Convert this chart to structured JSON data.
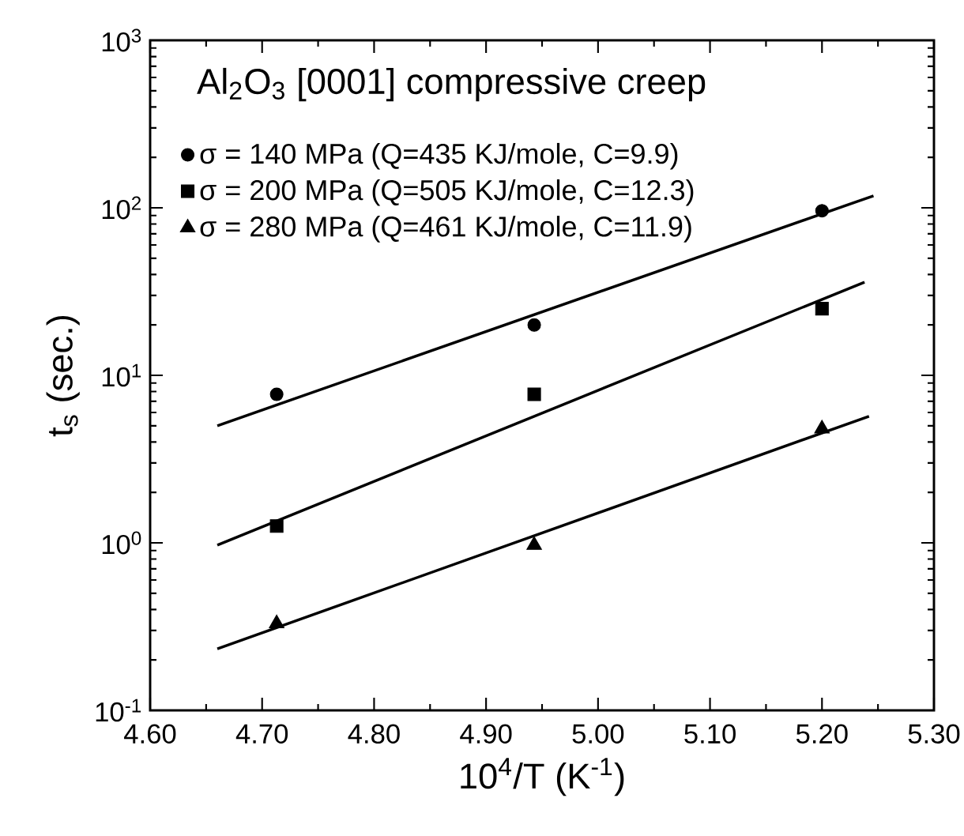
{
  "chart_data": {
    "type": "scatter",
    "title": "Al$_{2}$O$_{3}$   [0001] compressive creep",
    "xlabel": "10$^{4}$/T  (K$^{-1}$)",
    "ylabel": "t$_{s}$  (sec.)",
    "log": "y",
    "legend": "top left",
    "grid": false,
    "xlim": [
      4.6,
      5.3
    ],
    "ylim": [
      0.1,
      1000
    ],
    "xticks": [
      {
        "value": 4.6,
        "label": "4.60"
      },
      {
        "value": 4.7,
        "label": "4.70"
      },
      {
        "value": 4.8,
        "label": "4.80"
      },
      {
        "value": 4.9,
        "label": "4.90"
      },
      {
        "value": 5.0,
        "label": "5.00"
      },
      {
        "value": 5.1,
        "label": "5.10"
      },
      {
        "value": 5.2,
        "label": "5.20"
      },
      {
        "value": 5.3,
        "label": "5.30"
      }
    ],
    "yticks": [
      {
        "value": 0.1,
        "label": "10$^{-1}$"
      },
      {
        "value": 1,
        "label": "10$^{0}$"
      },
      {
        "value": 10,
        "label": "10$^{1}$"
      },
      {
        "value": 100,
        "label": "10$^{2}$"
      },
      {
        "value": 1000,
        "label": "10$^{3}$"
      }
    ],
    "series": [
      {
        "name": "σ = 140 MPa (Q=435 KJ/mole, C=9.9)",
        "marker": "circle",
        "color": "#000000",
        "x": [
          4.713,
          4.943,
          5.2
        ],
        "values": [
          7.7,
          20,
          96
        ]
      },
      {
        "name": "σ = 200 MPa (Q=505 KJ/mole, C=12.3)",
        "marker": "square",
        "color": "#000000",
        "x": [
          4.713,
          4.943,
          5.2
        ],
        "values": [
          1.26,
          7.7,
          25
        ]
      },
      {
        "name": "σ = 280 MPa (Q=461 KJ/mole, C=11.9)",
        "marker": "triangle",
        "color": "#000000",
        "x": [
          4.713,
          4.943,
          5.2
        ],
        "values": [
          0.33,
          0.97,
          4.8
        ]
      },
      {
        "type": "line",
        "color": "#000000",
        "x": [
          4.66,
          5.246
        ],
        "values": [
          5.0,
          118
        ]
      },
      {
        "type": "line",
        "color": "#000000",
        "x": [
          4.66,
          5.238
        ],
        "values": [
          0.97,
          36
        ]
      },
      {
        "type": "line",
        "color": "#000000",
        "x": [
          4.66,
          5.242
        ],
        "values": [
          0.233,
          5.7
        ]
      }
    ]
  }
}
